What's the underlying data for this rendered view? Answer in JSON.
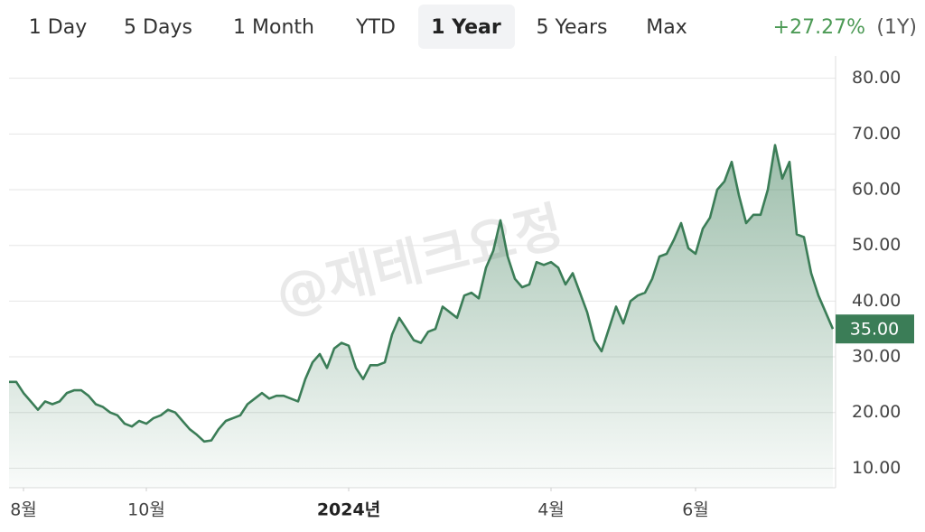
{
  "tabs": [
    "1 Day",
    "5 Days",
    "1 Month",
    "YTD",
    "1 Year",
    "5 Years",
    "Max"
  ],
  "change": {
    "value": "+27.27%",
    "period": "(1Y)"
  },
  "watermark": "@재테크요정",
  "chart_data": {
    "type": "area",
    "color": "#3b7d57",
    "values": [
      25.5,
      25.5,
      23.5,
      22,
      20.5,
      22,
      21.5,
      22,
      23.5,
      24,
      24,
      23,
      21.5,
      21,
      20,
      19.5,
      18,
      17.5,
      18.5,
      18,
      19,
      19.5,
      20.5,
      20,
      18.5,
      17,
      16,
      14.8,
      15,
      17,
      18.5,
      19,
      19.5,
      21.5,
      22.5,
      23.5,
      22.5,
      23,
      23,
      22.5,
      22,
      26,
      29,
      30.5,
      28,
      31.5,
      32.5,
      32,
      28,
      26,
      28.5,
      28.5,
      29,
      34,
      37,
      35,
      33,
      32.5,
      34.5,
      35,
      39,
      38,
      37,
      41,
      41.5,
      40.5,
      46,
      49,
      54.5,
      48,
      44,
      42.5,
      43,
      47,
      46.5,
      47,
      46,
      43,
      45,
      41.5,
      38,
      33,
      31,
      35,
      39,
      36,
      40,
      41,
      41.5,
      44,
      48,
      48.5,
      51,
      54,
      49.5,
      48.5,
      53,
      55,
      60,
      61.5,
      65,
      59,
      54,
      55.5,
      55.5,
      60,
      68,
      62,
      65,
      52,
      51.5,
      45,
      41,
      38,
      35
    ],
    "xlim": [
      0,
      114
    ],
    "xticks": [
      {
        "value": 2,
        "label": "8월"
      },
      {
        "value": 19,
        "label": "10월"
      },
      {
        "value": 47,
        "label": "2024년"
      },
      {
        "value": 75,
        "label": "4월"
      },
      {
        "value": 95,
        "label": "6월"
      }
    ],
    "ylim": [
      6.5,
      84
    ],
    "yticks": [
      {
        "value": 10,
        "label": "10.00"
      },
      {
        "value": 20,
        "label": "20.00"
      },
      {
        "value": 30,
        "label": "30.00"
      },
      {
        "value": 40,
        "label": "40.00"
      },
      {
        "value": 50,
        "label": "50.00"
      },
      {
        "value": 60,
        "label": "60.00"
      },
      {
        "value": 70,
        "label": "70.00"
      },
      {
        "value": 80,
        "label": "80.00"
      }
    ],
    "current_price": {
      "value": 35,
      "label": "35.00"
    },
    "grid": true
  }
}
